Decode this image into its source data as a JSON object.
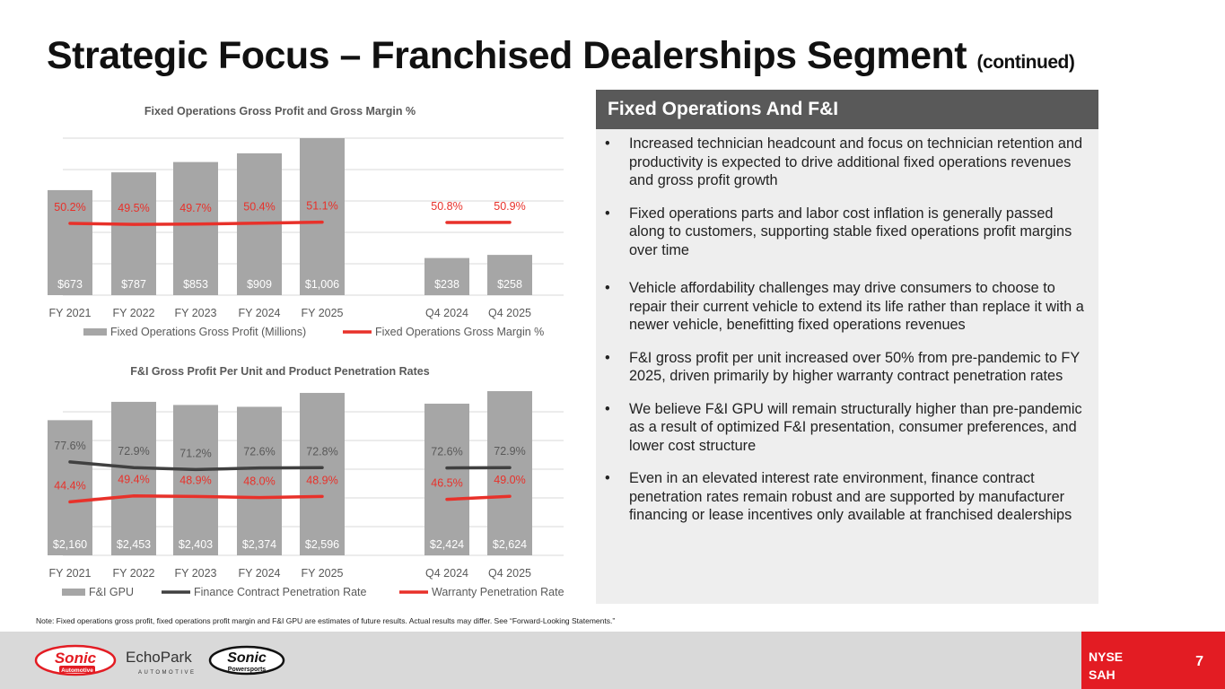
{
  "title": "Strategic Focus – Franchised Dealerships Segment",
  "title_suffix": "(continued)",
  "panel": {
    "heading": "Fixed Operations And F&I",
    "bullets": [
      "Increased technician headcount and focus on technician retention and productivity is expected to drive additional fixed operations revenues and gross profit growth",
      "Fixed operations parts and labor cost inflation is generally passed along to customers, supporting stable fixed operations profit margins over time",
      "Vehicle affordability challenges may drive consumers to choose to repair their current vehicle to extend its life rather than replace it with a newer vehicle, benefitting fixed operations revenues",
      "F&I gross profit per unit increased over 50% from pre-pandemic to FY 2025, driven primarily by higher warranty contract penetration rates",
      "We believe F&I GPU will remain structurally higher than pre-pandemic as a result of optimized F&I presentation, consumer preferences, and lower cost structure",
      "Even in an elevated interest rate environment, finance contract penetration rates remain robust and are supported by manufacturer financing or lease incentives only available at franchised dealerships"
    ]
  },
  "note": "Note: Fixed operations gross profit, fixed operations profit margin and F&I GPU are estimates of future results. Actual results may differ. See “Forward-Looking Statements.”",
  "footer": {
    "ticker_line1": "NYSE",
    "ticker_line2": "SAH",
    "page_number": "7",
    "logos": {
      "sonic_automotive": "Sonic",
      "sonic_automotive_sub": "Automotive",
      "echopark": "EchoPark",
      "echopark_sub": "AUTOMOTIVE",
      "sonic_powersports": "Sonic",
      "sonic_powersports_sub": "Powersports"
    }
  },
  "colors": {
    "bar": "#a6a6a6",
    "red_line": "#e8312a",
    "dark_line": "#404040",
    "grid": "#d9d9d9",
    "ticker_bg": "#e31c23",
    "panel_head": "#595959"
  },
  "chart_data": [
    {
      "type": "bar",
      "title": "Fixed Operations Gross Profit and Gross Margin %",
      "categories": [
        "FY 2021",
        "FY 2022",
        "FY 2023",
        "FY 2024",
        "FY 2025",
        "Q4 2024",
        "Q4 2025"
      ],
      "series": [
        {
          "name": "Fixed Operations Gross Profit (Millions)",
          "kind": "bar",
          "values": [
            673,
            787,
            853,
            909,
            1006,
            238,
            258
          ],
          "labels": [
            "$673",
            "$787",
            "$853",
            "$909",
            "$1,006",
            "$238",
            "$258"
          ]
        },
        {
          "name": "Fixed Operations Gross Margin %",
          "kind": "line",
          "values": [
            50.2,
            49.5,
            49.7,
            50.4,
            51.1,
            50.8,
            50.9
          ],
          "labels": [
            "50.2%",
            "49.5%",
            "49.7%",
            "50.4%",
            "51.1%",
            "50.8%",
            "50.9%"
          ]
        }
      ],
      "legend": "bottom",
      "grid": true
    },
    {
      "type": "bar",
      "title": "F&I Gross Profit Per Unit and Product Penetration Rates",
      "categories": [
        "FY 2021",
        "FY 2022",
        "FY 2023",
        "FY 2024",
        "FY 2025",
        "Q4 2024",
        "Q4 2025"
      ],
      "series": [
        {
          "name": "F&I GPU",
          "kind": "bar",
          "values": [
            2160,
            2453,
            2403,
            2374,
            2596,
            2424,
            2624
          ],
          "labels": [
            "$2,160",
            "$2,453",
            "$2,403",
            "$2,374",
            "$2,596",
            "$2,424",
            "$2,624"
          ]
        },
        {
          "name": "Finance Contract Penetration Rate",
          "kind": "line",
          "values": [
            77.6,
            72.9,
            71.2,
            72.6,
            72.8,
            72.6,
            72.9
          ],
          "labels": [
            "77.6%",
            "72.9%",
            "71.2%",
            "72.6%",
            "72.8%",
            "72.6%",
            "72.9%"
          ]
        },
        {
          "name": "Warranty Penetration Rate",
          "kind": "line",
          "values": [
            44.4,
            49.4,
            48.9,
            48.0,
            48.9,
            46.5,
            49.0
          ],
          "labels": [
            "44.4%",
            "49.4%",
            "48.9%",
            "48.0%",
            "48.9%",
            "46.5%",
            "49.0%"
          ]
        }
      ],
      "legend": "bottom",
      "grid": true
    }
  ]
}
